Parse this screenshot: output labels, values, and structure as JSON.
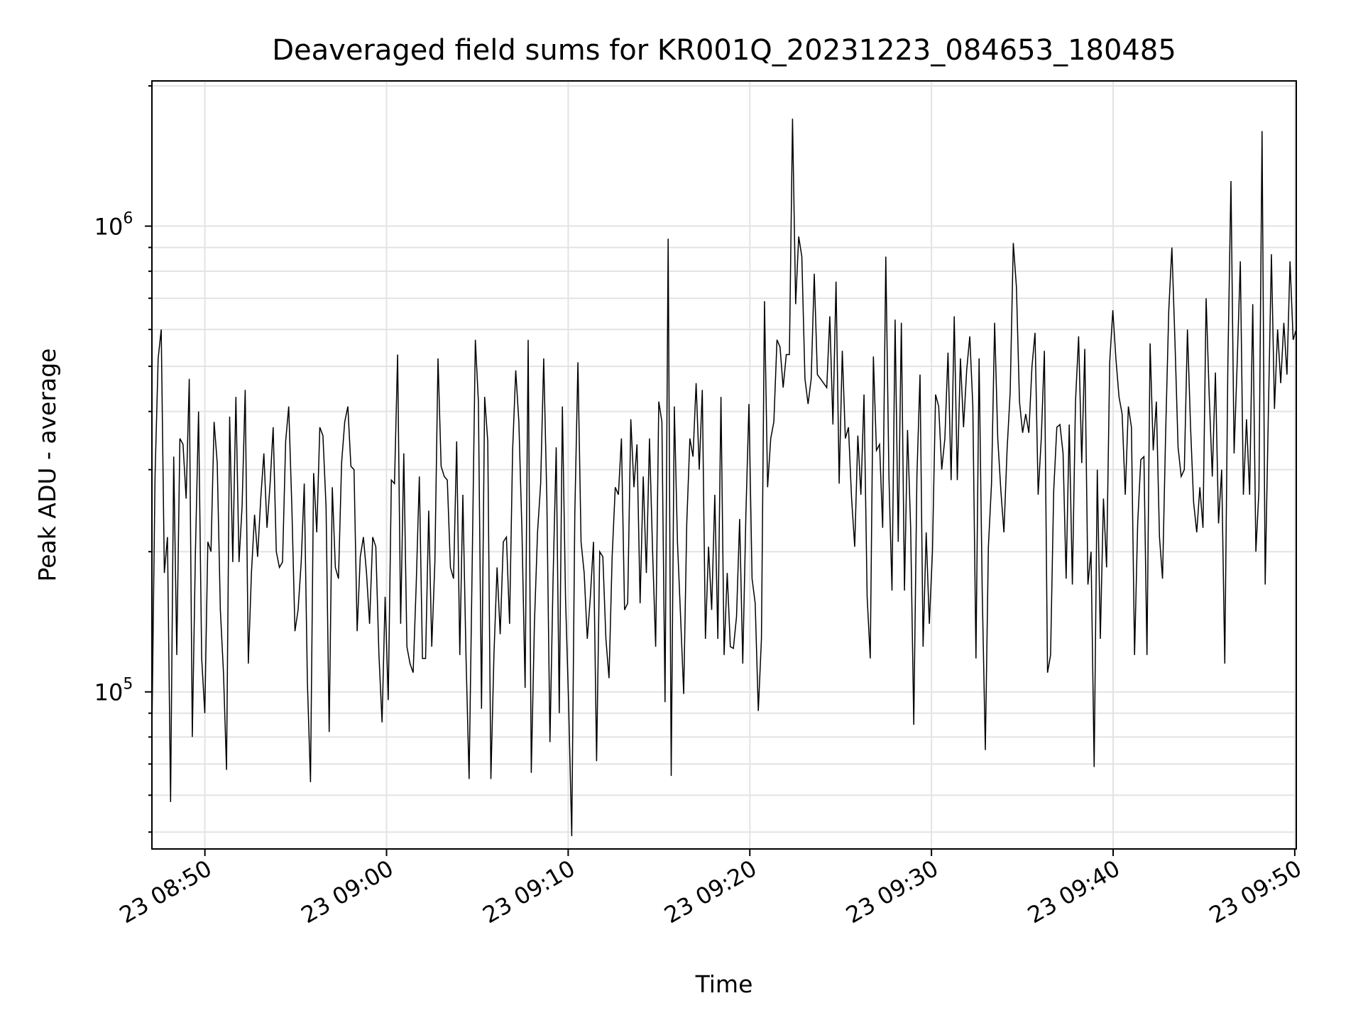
{
  "chart_data": {
    "type": "line",
    "title": "Deaveraged field sums for KR001Q_20231223_084653_180485",
    "xlabel": "Time",
    "ylabel": "Peak ADU - average",
    "yscale": "log",
    "grid": true,
    "xlim": [
      "2023-12-23 08:47:05",
      "2023-12-23 09:50:05"
    ],
    "ylim": [
      46000,
      2050000
    ],
    "x_ticks": [
      {
        "t": "2023-12-23 08:50",
        "label": "23 08:50"
      },
      {
        "t": "2023-12-23 09:00",
        "label": "23 09:00"
      },
      {
        "t": "2023-12-23 09:10",
        "label": "23 09:10"
      },
      {
        "t": "2023-12-23 09:20",
        "label": "23 09:20"
      },
      {
        "t": "2023-12-23 09:30",
        "label": "23 09:30"
      },
      {
        "t": "2023-12-23 09:40",
        "label": "23 09:40"
      },
      {
        "t": "2023-12-23 09:50",
        "label": "23 09:50"
      }
    ],
    "y_ticks": [
      {
        "value": 100000,
        "base": "10",
        "exp": "5"
      },
      {
        "value": 1000000,
        "base": "10",
        "exp": "6"
      }
    ],
    "series": [
      {
        "color": "#000000",
        "x_start": "2023-12-23 08:47:05",
        "x_end": "2023-12-23 09:50:05",
        "values": [
          82000,
          290000,
          520000,
          600000,
          180000,
          215000,
          58000,
          320000,
          120000,
          350000,
          340000,
          260000,
          470000,
          80000,
          200000,
          400000,
          118000,
          90000,
          210000,
          200000,
          380000,
          310000,
          150000,
          110000,
          68000,
          390000,
          190000,
          430000,
          190000,
          250000,
          445000,
          115000,
          180000,
          240000,
          195000,
          260000,
          325000,
          225000,
          280000,
          370000,
          200000,
          185000,
          190000,
          345000,
          410000,
          250000,
          135000,
          150000,
          190000,
          280000,
          105000,
          64000,
          295000,
          220000,
          370000,
          355000,
          250000,
          82000,
          275000,
          185000,
          175000,
          310000,
          380000,
          410000,
          305000,
          300000,
          135000,
          195000,
          215000,
          180000,
          140000,
          215000,
          205000,
          120000,
          86000,
          160000,
          96000,
          285000,
          280000,
          530000,
          140000,
          325000,
          125000,
          115000,
          110000,
          170000,
          290000,
          118000,
          118000,
          245000,
          125000,
          190000,
          520000,
          305000,
          290000,
          285000,
          185000,
          175000,
          345000,
          120000,
          265000,
          120000,
          65000,
          190000,
          570000,
          420000,
          92000,
          430000,
          345000,
          65000,
          120000,
          185000,
          133000,
          210000,
          215000,
          140000,
          330000,
          490000,
          380000,
          220000,
          102000,
          570000,
          67000,
          140000,
          220000,
          280000,
          520000,
          260000,
          78000,
          175000,
          335000,
          90000,
          410000,
          160000,
          94000,
          49000,
          240000,
          510000,
          210000,
          180000,
          130000,
          160000,
          210000,
          71000,
          200000,
          195000,
          130000,
          107000,
          195000,
          275000,
          265000,
          350000,
          150000,
          155000,
          385000,
          275000,
          340000,
          155000,
          290000,
          180000,
          350000,
          200000,
          125000,
          420000,
          380000,
          95000,
          940000,
          66000,
          410000,
          210000,
          145000,
          99000,
          230000,
          350000,
          320000,
          460000,
          300000,
          445000,
          130000,
          205000,
          150000,
          265000,
          130000,
          430000,
          120000,
          180000,
          125000,
          124000,
          145000,
          235000,
          115000,
          240000,
          415000,
          175000,
          155000,
          91000,
          130000,
          690000,
          275000,
          350000,
          380000,
          570000,
          550000,
          450000,
          530000,
          530000,
          1700000,
          680000,
          950000,
          860000,
          470000,
          415000,
          470000,
          790000,
          480000,
          470000,
          460000,
          450000,
          640000,
          375000,
          760000,
          280000,
          540000,
          350000,
          370000,
          260000,
          205000,
          355000,
          265000,
          435000,
          160000,
          118000,
          525000,
          330000,
          340000,
          225000,
          860000,
          290000,
          165000,
          630000,
          210000,
          620000,
          165000,
          365000,
          225000,
          85000,
          290000,
          480000,
          125000,
          220000,
          140000,
          200000,
          435000,
          410000,
          300000,
          350000,
          535000,
          285000,
          640000,
          285000,
          520000,
          370000,
          490000,
          580000,
          410000,
          118000,
          520000,
          165000,
          75000,
          205000,
          280000,
          620000,
          350000,
          270000,
          220000,
          330000,
          440000,
          920000,
          740000,
          420000,
          360000,
          395000,
          360000,
          500000,
          590000,
          265000,
          350000,
          540000,
          110000,
          120000,
          270000,
          370000,
          375000,
          325000,
          175000,
          375000,
          170000,
          420000,
          580000,
          310000,
          545000,
          170000,
          200000,
          69000,
          300000,
          130000,
          260000,
          185000,
          510000,
          660000,
          520000,
          430000,
          395000,
          265000,
          410000,
          370000,
          120000,
          230000,
          315000,
          320000,
          120000,
          560000,
          330000,
          420000,
          215000,
          175000,
          360000,
          660000,
          900000,
          560000,
          335000,
          290000,
          300000,
          600000,
          370000,
          255000,
          220000,
          275000,
          225000,
          700000,
          435000,
          290000,
          485000,
          230000,
          300000,
          115000,
          500000,
          1250000,
          325000,
          510000,
          840000,
          265000,
          385000,
          265000,
          680000,
          200000,
          270000,
          1600000,
          170000,
          390000,
          870000,
          405000,
          600000,
          460000,
          620000,
          480000,
          840000,
          570000,
          600000
        ]
      }
    ]
  }
}
